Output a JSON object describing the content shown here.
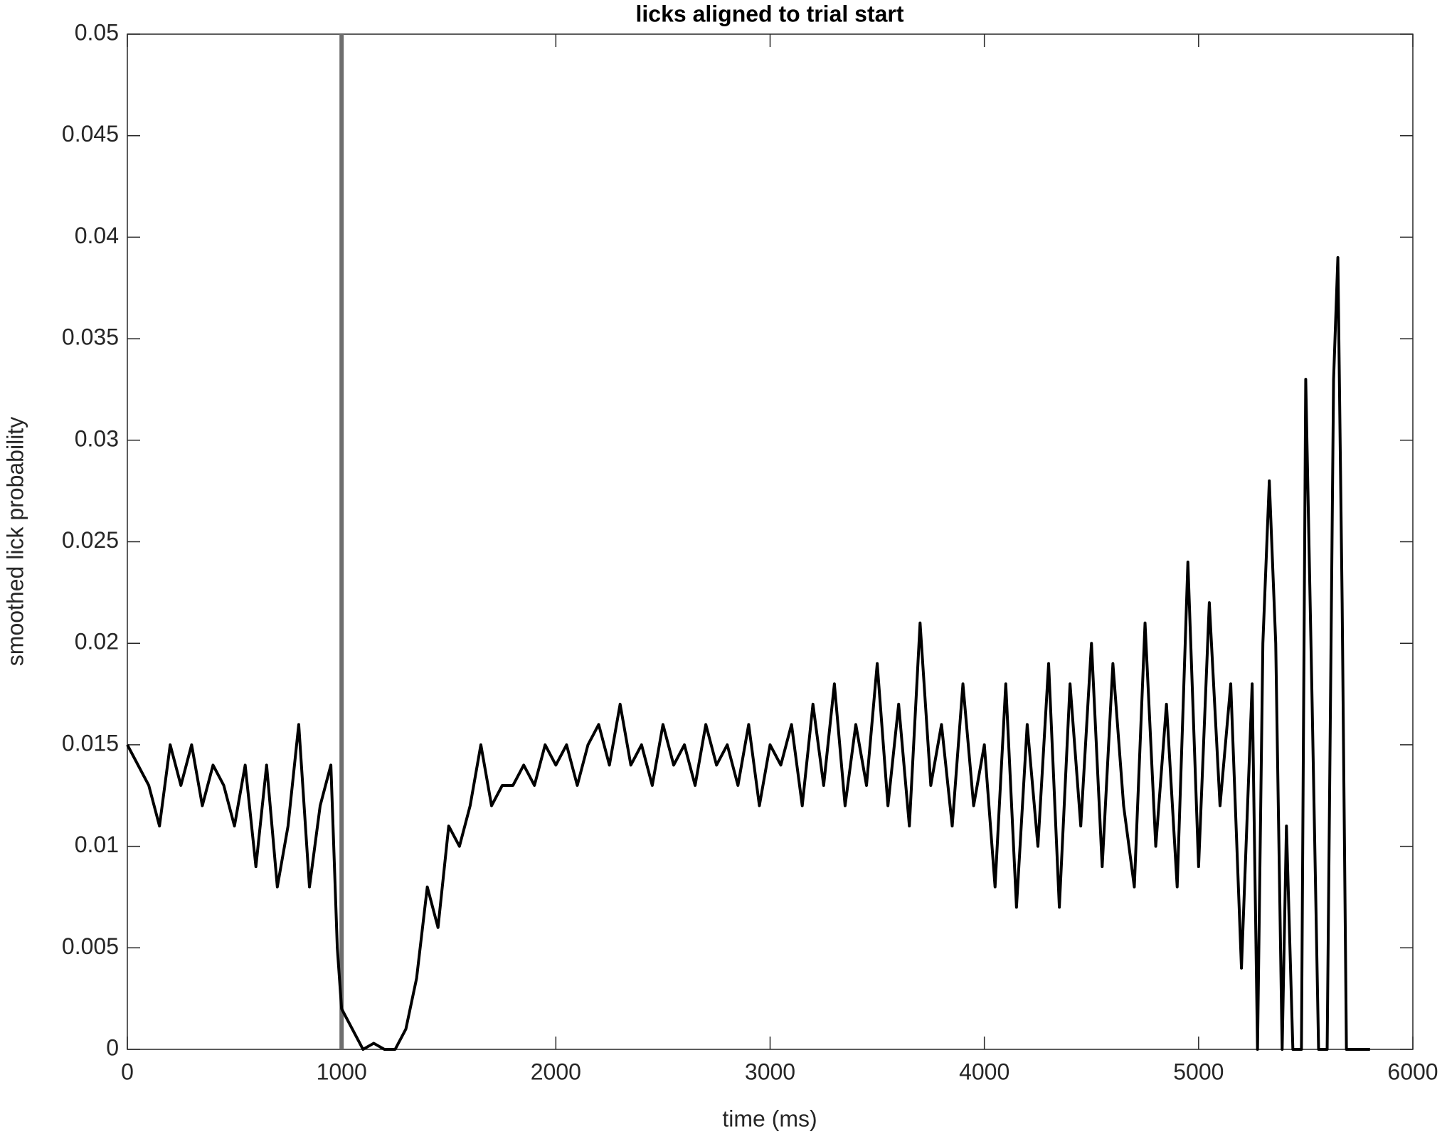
{
  "chart_data": {
    "type": "line",
    "title": "licks aligned to trial start",
    "x_label": "time (ms)",
    "y_label": "smoothed lick probability",
    "xlim": [
      0,
      6000
    ],
    "xticks": [
      0,
      1000,
      2000,
      3000,
      4000,
      5000,
      6000
    ],
    "ylim": [
      0,
      0.05
    ],
    "yticks": [
      0,
      0.005,
      0.01,
      0.015,
      0.02,
      0.025,
      0.03,
      0.035,
      0.04,
      0.045,
      0.05
    ],
    "vlines": [
      1000
    ],
    "vline_color": "#6e6e6e",
    "x": [
      0,
      50,
      100,
      150,
      200,
      250,
      300,
      350,
      400,
      450,
      500,
      550,
      600,
      650,
      700,
      750,
      800,
      850,
      900,
      950,
      980,
      1000,
      1050,
      1100,
      1150,
      1200,
      1250,
      1300,
      1350,
      1400,
      1450,
      1500,
      1550,
      1600,
      1650,
      1700,
      1750,
      1800,
      1850,
      1900,
      1950,
      2000,
      2050,
      2100,
      2150,
      2200,
      2250,
      2300,
      2350,
      2400,
      2450,
      2500,
      2550,
      2600,
      2650,
      2700,
      2750,
      2800,
      2850,
      2900,
      2950,
      3000,
      3050,
      3100,
      3150,
      3200,
      3250,
      3300,
      3350,
      3400,
      3450,
      3500,
      3550,
      3600,
      3650,
      3700,
      3750,
      3800,
      3850,
      3900,
      3950,
      4000,
      4050,
      4100,
      4150,
      4200,
      4250,
      4300,
      4350,
      4400,
      4450,
      4500,
      4550,
      4600,
      4650,
      4700,
      4750,
      4800,
      4850,
      4900,
      4950,
      5000,
      5050,
      5100,
      5150,
      5200,
      5250,
      5275,
      5300,
      5330,
      5360,
      5390,
      5410,
      5440,
      5480,
      5500,
      5530,
      5560,
      5600,
      5630,
      5650,
      5670,
      5690,
      5800
    ],
    "series": [
      {
        "color": "#000000",
        "values": [
          0.015,
          0.014,
          0.013,
          0.011,
          0.015,
          0.013,
          0.015,
          0.012,
          0.014,
          0.013,
          0.011,
          0.014,
          0.009,
          0.014,
          0.008,
          0.011,
          0.016,
          0.008,
          0.012,
          0.014,
          0.005,
          0.002,
          0.001,
          0,
          0.0003,
          0,
          0,
          0.001,
          0.0035,
          0.008,
          0.006,
          0.011,
          0.01,
          0.012,
          0.015,
          0.012,
          0.013,
          0.013,
          0.014,
          0.013,
          0.015,
          0.014,
          0.015,
          0.013,
          0.015,
          0.016,
          0.014,
          0.017,
          0.014,
          0.015,
          0.013,
          0.016,
          0.014,
          0.015,
          0.013,
          0.016,
          0.014,
          0.015,
          0.013,
          0.016,
          0.012,
          0.015,
          0.014,
          0.016,
          0.012,
          0.017,
          0.013,
          0.018,
          0.012,
          0.016,
          0.013,
          0.019,
          0.012,
          0.017,
          0.011,
          0.021,
          0.013,
          0.016,
          0.011,
          0.018,
          0.012,
          0.015,
          0.008,
          0.018,
          0.007,
          0.016,
          0.01,
          0.019,
          0.007,
          0.018,
          0.011,
          0.02,
          0.009,
          0.019,
          0.012,
          0.008,
          0.021,
          0.01,
          0.017,
          0.008,
          0.024,
          0.009,
          0.022,
          0.012,
          0.018,
          0.004,
          0.018,
          0,
          0.02,
          0.028,
          0.02,
          0,
          0.011,
          0,
          0,
          0.033,
          0.017,
          0,
          0,
          0.033,
          0.039,
          0.022,
          0,
          0
        ]
      }
    ]
  }
}
